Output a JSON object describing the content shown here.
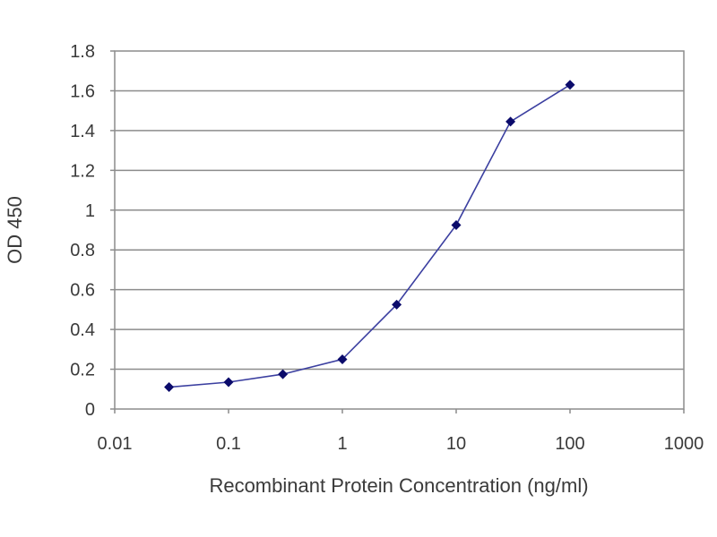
{
  "chart_data": {
    "type": "line",
    "title": "",
    "xlabel": "Recombinant Protein Concentration (ng/ml)",
    "ylabel": "OD 450",
    "xscale": "log",
    "xlim": [
      0.01,
      1000
    ],
    "ylim": [
      0,
      1.8
    ],
    "xticks": [
      0.01,
      0.1,
      1,
      10,
      100,
      1000
    ],
    "xtick_labels": [
      "0.01",
      "0.1",
      "1",
      "10",
      "100",
      "1000"
    ],
    "yticks": [
      0,
      0.2,
      0.4,
      0.6,
      0.8,
      1,
      1.2,
      1.4,
      1.6,
      1.8
    ],
    "ytick_labels": [
      "0",
      "0.2",
      "0.4",
      "0.6",
      "0.8",
      "1",
      "1.2",
      "1.4",
      "1.6",
      "1.8"
    ],
    "grid": "horizontal",
    "legend": "none",
    "series": [
      {
        "x": [
          0.03,
          0.1,
          0.3,
          1,
          3,
          10,
          30,
          100
        ],
        "y": [
          0.11,
          0.135,
          0.175,
          0.25,
          0.525,
          0.925,
          1.445,
          1.63
        ],
        "color": "#3b3fa0",
        "marker": "diamond",
        "marker_color": "#0b0b6b"
      }
    ],
    "colors": {
      "plot_background": "#ffffff",
      "gridline": "#8c8c8c",
      "frame": "#8c8c8c"
    }
  }
}
